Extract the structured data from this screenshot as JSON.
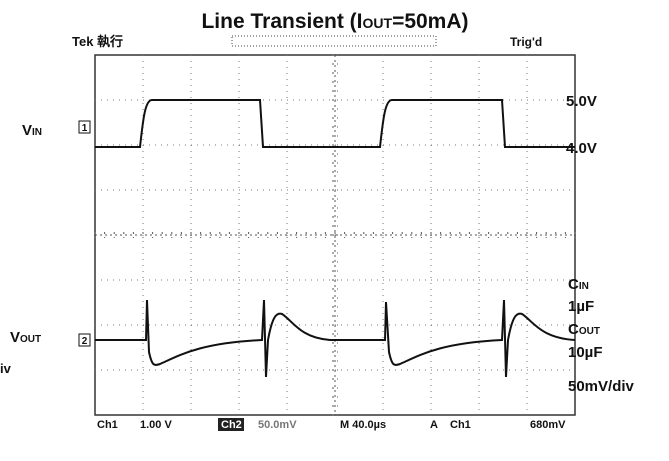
{
  "title": {
    "prefix": "Line Transient (I",
    "sub": "OUT",
    "suffix": "=50mA)"
  },
  "top_bar": {
    "brand": "Tek 執行",
    "status": "Trig'd"
  },
  "left_labels": {
    "vin": {
      "main": "V",
      "sub": "IN"
    },
    "vout": {
      "main": "V",
      "sub": "OUT"
    },
    "cut": "iv"
  },
  "channel_markers": [
    "1",
    "2"
  ],
  "right_labels": {
    "vin_high": "5.0V",
    "vin_low": "4.0V",
    "cin": {
      "main": "C",
      "sub": "IN"
    },
    "cin_value": "1µF",
    "cout": {
      "main": "C",
      "sub": "OUT"
    },
    "cout_value": "10µF",
    "scale": "50mV/div"
  },
  "status_bar": {
    "ch1": "Ch1",
    "ch1_scale": "1.00 V",
    "ch2": "Ch2",
    "ch2_scale": "50.0mV",
    "timebase": "M 40.0µs",
    "trigger_mode": "A",
    "trigger_source": "Ch1",
    "trigger_level": "680mV"
  }
}
